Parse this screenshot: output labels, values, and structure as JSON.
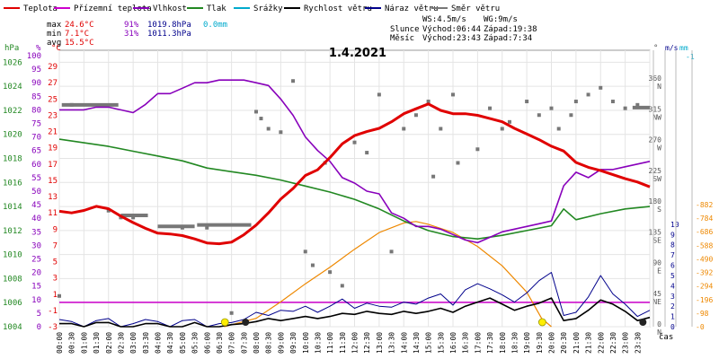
{
  "legend": [
    {
      "label": "Teplota",
      "color": "#e00000"
    },
    {
      "label": "Přízemní teplota",
      "color": "#cc00cc"
    },
    {
      "label": "Vlhkost",
      "color": "#8800bb"
    },
    {
      "label": "Tlak",
      "color": "#228822"
    },
    {
      "label": "Srážky",
      "color": "#00aacc"
    },
    {
      "label": "Rychlost větru",
      "color": "#000000"
    },
    {
      "label": "Náraz větru",
      "color": "#00008b"
    },
    {
      "label": "Směr větru",
      "color": "#777777"
    }
  ],
  "stats": {
    "max": {
      "label": "max",
      "temp": "24.6°C",
      "hum": "91%",
      "press": "1019.8hPa",
      "rain": "0.0mm"
    },
    "min": {
      "label": "min",
      "temp": "7.1°C",
      "hum": "31%",
      "press": "1011.3hPa"
    },
    "avg": {
      "label": "avg",
      "temp": "15.5°C"
    }
  },
  "info": {
    "ws": "WS:4.5m/s",
    "wg": "WG:9m/s",
    "sun_label": "Slunce",
    "sunrise": "Východ:06:44",
    "sunset": "Západ:19:38",
    "moon_label": "Měsíc",
    "moonrise": "Východ:23:43",
    "moonset": "Západ:7:34"
  },
  "colors": {
    "temp": "#e00000",
    "ground": "#cc00cc",
    "hum": "#8800bb",
    "press": "#228822",
    "rain": "#00aacc",
    "wind": "#000000",
    "gust": "#00008b",
    "dir": "#777777",
    "sun": "#ee8800",
    "mm": "#ee8800"
  },
  "chart_data": {
    "type": "line",
    "title": "1.4.2021",
    "xlabel": "čas",
    "x_ticks": [
      "00:00",
      "00:30",
      "01:00",
      "01:30",
      "02:00",
      "02:30",
      "03:00",
      "03:30",
      "04:00",
      "04:30",
      "05:00",
      "05:30",
      "06:00",
      "06:30",
      "07:00",
      "07:30",
      "08:00",
      "08:30",
      "09:00",
      "09:30",
      "10:00",
      "10:30",
      "11:00",
      "11:30",
      "12:00",
      "12:30",
      "13:00",
      "13:30",
      "14:00",
      "14:30",
      "15:00",
      "15:30",
      "16:00",
      "16:30",
      "17:00",
      "17:30",
      "18:00",
      "18:30",
      "19:00",
      "19:30",
      "20:00",
      "20:30",
      "21:00",
      "21:30",
      "22:00",
      "22:30",
      "23:00",
      "23:30"
    ],
    "axes": {
      "hpa": {
        "label": "hPa",
        "ticks": [
          1004,
          1006,
          1008,
          1010,
          1012,
          1014,
          1016,
          1018,
          1020,
          1022,
          1024,
          1026
        ],
        "range": [
          1004,
          1027
        ]
      },
      "pct": {
        "label": "%",
        "ticks": [
          0,
          5,
          10,
          15,
          20,
          25,
          30,
          35,
          40,
          45,
          50,
          55,
          60,
          65,
          70,
          75,
          80,
          85,
          90,
          95,
          100
        ],
        "range": [
          0,
          102
        ]
      },
      "temp": {
        "label": "°C",
        "ticks": [
          -3,
          -1,
          1,
          3,
          5,
          7,
          9,
          11,
          13,
          15,
          17,
          19,
          21,
          23,
          25,
          27,
          29
        ],
        "range": [
          -3,
          31
        ]
      },
      "dir": {
        "label": "°",
        "ticks": [
          0,
          45,
          90,
          135,
          180,
          225,
          270,
          315,
          360
        ],
        "labels": [
          "N",
          "NE",
          "E",
          "SE",
          "S",
          "SW",
          "W",
          "NW",
          "N"
        ],
        "range": [
          0,
          405
        ]
      },
      "ms": {
        "label": "m/s",
        "ticks": [
          0,
          1,
          2,
          3,
          4,
          5,
          6,
          7,
          8,
          9,
          10
        ],
        "range": [
          0,
          27
        ]
      },
      "mm": {
        "label": "mm",
        "ticks": [
          1
        ],
        "range": [
          0,
          1.1
        ]
      },
      "sun": {
        "ticks": [
          0,
          98,
          196,
          294,
          392,
          490,
          588,
          686,
          784,
          882
        ],
        "range": [
          0,
          882
        ]
      }
    },
    "temperature": {
      "name": "Teplota",
      "points": [
        [
          0,
          11.2
        ],
        [
          0.5,
          11
        ],
        [
          1,
          11.3
        ],
        [
          1.5,
          11.8
        ],
        [
          2,
          11.5
        ],
        [
          2.5,
          10.6
        ],
        [
          3,
          9.8
        ],
        [
          3.5,
          9.1
        ],
        [
          4,
          8.5
        ],
        [
          4.5,
          8.4
        ],
        [
          5,
          8.2
        ],
        [
          5.5,
          7.8
        ],
        [
          6,
          7.3
        ],
        [
          6.5,
          7.2
        ],
        [
          7,
          7.4
        ],
        [
          7.5,
          8.3
        ],
        [
          8,
          9.5
        ],
        [
          8.5,
          11
        ],
        [
          9,
          12.7
        ],
        [
          9.5,
          14
        ],
        [
          10,
          15.6
        ],
        [
          10.5,
          16.3
        ],
        [
          11,
          17.8
        ],
        [
          11.5,
          19.5
        ],
        [
          12,
          20.5
        ],
        [
          12.5,
          21
        ],
        [
          13,
          21.4
        ],
        [
          13.5,
          22.2
        ],
        [
          14,
          23.2
        ],
        [
          14.5,
          23.8
        ],
        [
          15,
          24.4
        ],
        [
          15.5,
          23.6
        ],
        [
          16,
          23.2
        ],
        [
          16.5,
          23.2
        ],
        [
          17,
          23
        ],
        [
          17.5,
          22.6
        ],
        [
          18,
          22.2
        ],
        [
          18.5,
          21.4
        ],
        [
          19,
          20.7
        ],
        [
          19.5,
          20
        ],
        [
          20,
          19.2
        ],
        [
          20.5,
          18.6
        ],
        [
          21,
          17.2
        ],
        [
          21.5,
          16.6
        ],
        [
          22,
          16.2
        ],
        [
          22.5,
          15.7
        ],
        [
          23,
          15.2
        ],
        [
          23.5,
          14.8
        ],
        [
          24,
          14.2
        ]
      ]
    },
    "humidity": {
      "name": "Vlhkost",
      "points": [
        [
          0,
          80
        ],
        [
          0.5,
          80
        ],
        [
          1,
          80
        ],
        [
          1.5,
          81
        ],
        [
          2,
          81
        ],
        [
          2.5,
          80
        ],
        [
          3,
          79
        ],
        [
          3.5,
          82
        ],
        [
          4,
          86
        ],
        [
          4.5,
          86
        ],
        [
          5,
          88
        ],
        [
          5.5,
          90
        ],
        [
          6,
          90
        ],
        [
          6.5,
          91
        ],
        [
          7,
          91
        ],
        [
          7.5,
          91
        ],
        [
          8,
          90
        ],
        [
          8.5,
          89
        ],
        [
          9,
          84
        ],
        [
          9.5,
          78
        ],
        [
          10,
          70
        ],
        [
          10.5,
          65
        ],
        [
          11,
          61
        ],
        [
          11.5,
          55
        ],
        [
          12,
          53
        ],
        [
          12.5,
          50
        ],
        [
          13,
          49
        ],
        [
          13.5,
          42
        ],
        [
          14,
          40
        ],
        [
          14.5,
          37
        ],
        [
          15,
          37
        ],
        [
          15.5,
          36
        ],
        [
          16,
          34
        ],
        [
          16.5,
          32
        ],
        [
          17,
          31
        ],
        [
          17.5,
          33
        ],
        [
          18,
          35
        ],
        [
          18.5,
          36
        ],
        [
          19,
          37
        ],
        [
          19.5,
          38
        ],
        [
          20,
          39
        ],
        [
          20.5,
          52
        ],
        [
          21,
          57
        ],
        [
          21.5,
          55
        ],
        [
          22,
          58
        ],
        [
          22.5,
          58
        ],
        [
          23,
          59
        ],
        [
          23.5,
          60
        ],
        [
          24,
          61
        ]
      ]
    },
    "pressure": {
      "name": "Tlak",
      "points": [
        [
          0,
          1019.6
        ],
        [
          1,
          1019.3
        ],
        [
          2,
          1019.0
        ],
        [
          3,
          1018.6
        ],
        [
          4,
          1018.2
        ],
        [
          5,
          1017.8
        ],
        [
          6,
          1017.2
        ],
        [
          7,
          1016.9
        ],
        [
          8,
          1016.6
        ],
        [
          9,
          1016.2
        ],
        [
          10,
          1015.7
        ],
        [
          11,
          1015.2
        ],
        [
          12,
          1014.6
        ],
        [
          13,
          1013.8
        ],
        [
          14,
          1012.8
        ],
        [
          15,
          1012.0
        ],
        [
          16,
          1011.5
        ],
        [
          17,
          1011.3
        ],
        [
          18,
          1011.6
        ],
        [
          19,
          1012.0
        ],
        [
          20,
          1012.4
        ],
        [
          20.5,
          1013.8
        ],
        [
          21,
          1012.9
        ],
        [
          22,
          1013.4
        ],
        [
          23,
          1013.8
        ],
        [
          24,
          1014.0
        ]
      ]
    },
    "ground_temp_level": 0,
    "pressure_ref_level": 1006,
    "wind_speed": {
      "name": "Rychlost větru",
      "points": [
        [
          0,
          0.3
        ],
        [
          0.5,
          0.3
        ],
        [
          1,
          0
        ],
        [
          1.5,
          0.4
        ],
        [
          2,
          0.4
        ],
        [
          2.5,
          0
        ],
        [
          3,
          0
        ],
        [
          3.5,
          0.3
        ],
        [
          4,
          0.3
        ],
        [
          4.5,
          0
        ],
        [
          5,
          0
        ],
        [
          5.5,
          0.4
        ],
        [
          6,
          0
        ],
        [
          6.5,
          0
        ],
        [
          7,
          0.2
        ],
        [
          7.5,
          0.3
        ],
        [
          8,
          0.5
        ],
        [
          8.5,
          0.8
        ],
        [
          9,
          0.6
        ],
        [
          9.5,
          0.8
        ],
        [
          10,
          1
        ],
        [
          10.5,
          0.8
        ],
        [
          11,
          1
        ],
        [
          11.5,
          1.3
        ],
        [
          12,
          1.2
        ],
        [
          12.5,
          1.5
        ],
        [
          13,
          1.3
        ],
        [
          13.5,
          1.2
        ],
        [
          14,
          1.5
        ],
        [
          14.5,
          1.3
        ],
        [
          15,
          1.5
        ],
        [
          15.5,
          1.8
        ],
        [
          16,
          1.4
        ],
        [
          16.5,
          2
        ],
        [
          17,
          2.4
        ],
        [
          17.5,
          2.8
        ],
        [
          18,
          2.2
        ],
        [
          18.5,
          1.6
        ],
        [
          19,
          2
        ],
        [
          19.5,
          2.3
        ],
        [
          20,
          2.8
        ],
        [
          20.5,
          0.6
        ],
        [
          21,
          0.8
        ],
        [
          21.5,
          1.6
        ],
        [
          22,
          2.6
        ],
        [
          22.5,
          2.2
        ],
        [
          23,
          1.5
        ],
        [
          23.5,
          0.6
        ],
        [
          24,
          0.9
        ]
      ]
    },
    "wind_gust": {
      "name": "Náraz větru",
      "points": [
        [
          0,
          0.7
        ],
        [
          0.5,
          0.5
        ],
        [
          1,
          0
        ],
        [
          1.5,
          0.6
        ],
        [
          2,
          0.8
        ],
        [
          2.5,
          0
        ],
        [
          3,
          0.3
        ],
        [
          3.5,
          0.7
        ],
        [
          4,
          0.5
        ],
        [
          4.5,
          0
        ],
        [
          5,
          0.6
        ],
        [
          5.5,
          0.7
        ],
        [
          6,
          0
        ],
        [
          6.5,
          0.3
        ],
        [
          7,
          0.4
        ],
        [
          7.5,
          0.7
        ],
        [
          8,
          1.4
        ],
        [
          8.5,
          1.1
        ],
        [
          9,
          1.6
        ],
        [
          9.5,
          1.5
        ],
        [
          10,
          2
        ],
        [
          10.5,
          1.4
        ],
        [
          11,
          2
        ],
        [
          11.5,
          2.7
        ],
        [
          12,
          1.8
        ],
        [
          12.5,
          2.3
        ],
        [
          13,
          2
        ],
        [
          13.5,
          1.9
        ],
        [
          14,
          2.4
        ],
        [
          14.5,
          2.2
        ],
        [
          15,
          2.8
        ],
        [
          15.5,
          3.2
        ],
        [
          16,
          2.1
        ],
        [
          16.5,
          3.6
        ],
        [
          17,
          4.2
        ],
        [
          17.5,
          3.7
        ],
        [
          18,
          3.1
        ],
        [
          18.5,
          2.4
        ],
        [
          19,
          3.3
        ],
        [
          19.5,
          4.5
        ],
        [
          20,
          5.3
        ],
        [
          20.5,
          1.1
        ],
        [
          21,
          1.4
        ],
        [
          21.5,
          2.9
        ],
        [
          22,
          5
        ],
        [
          22.5,
          3.2
        ],
        [
          23,
          2.2
        ],
        [
          23.5,
          1
        ],
        [
          24,
          1.6
        ]
      ]
    },
    "sun_radiation": {
      "points": [
        [
          6.7,
          0
        ],
        [
          8,
          60
        ],
        [
          9,
          180
        ],
        [
          10,
          310
        ],
        [
          11,
          430
        ],
        [
          12,
          560
        ],
        [
          13,
          680
        ],
        [
          14,
          750
        ],
        [
          14.5,
          760
        ],
        [
          15,
          740
        ],
        [
          16,
          680
        ],
        [
          17,
          580
        ],
        [
          18,
          440
        ],
        [
          19,
          250
        ],
        [
          19.6,
          60
        ],
        [
          20,
          0
        ]
      ]
    },
    "wind_direction": [
      [
        0,
        45
      ],
      [
        0.5,
        325
      ],
      [
        2,
        170
      ],
      [
        2.5,
        160
      ],
      [
        3,
        160
      ],
      [
        5,
        145
      ],
      [
        6,
        145
      ],
      [
        7,
        20
      ],
      [
        8,
        315
      ],
      [
        8.2,
        305
      ],
      [
        8.5,
        290
      ],
      [
        9,
        285
      ],
      [
        9.5,
        360
      ],
      [
        10,
        110
      ],
      [
        10.3,
        90
      ],
      [
        10.8,
        240
      ],
      [
        11,
        80
      ],
      [
        11.5,
        60
      ],
      [
        12,
        270
      ],
      [
        12.5,
        255
      ],
      [
        13,
        340
      ],
      [
        13.5,
        110
      ],
      [
        14,
        290
      ],
      [
        14.5,
        310
      ],
      [
        15,
        330
      ],
      [
        15.2,
        220
      ],
      [
        15.5,
        290
      ],
      [
        16,
        340
      ],
      [
        16.2,
        240
      ],
      [
        17,
        260
      ],
      [
        17.5,
        320
      ],
      [
        18,
        290
      ],
      [
        18.3,
        300
      ],
      [
        19,
        330
      ],
      [
        19.5,
        310
      ],
      [
        20,
        320
      ],
      [
        20.3,
        290
      ],
      [
        20.8,
        310
      ],
      [
        21,
        330
      ],
      [
        21.5,
        340
      ],
      [
        22,
        350
      ],
      [
        22.5,
        330
      ],
      [
        23,
        320
      ],
      [
        23.5,
        325
      ]
    ],
    "dir_segments": [
      {
        "from": 0.1,
        "to": 2.4,
        "value": 325
      },
      {
        "from": 2.5,
        "to": 3.6,
        "value": 163
      },
      {
        "from": 4.0,
        "to": 5.5,
        "value": 147
      },
      {
        "from": 5.6,
        "to": 7.8,
        "value": 149
      },
      {
        "from": 23.3,
        "to": 24,
        "value": 321
      }
    ],
    "sun_markers": [
      6.73,
      19.63
    ],
    "moon_markers": [
      7.57,
      23.72
    ]
  }
}
